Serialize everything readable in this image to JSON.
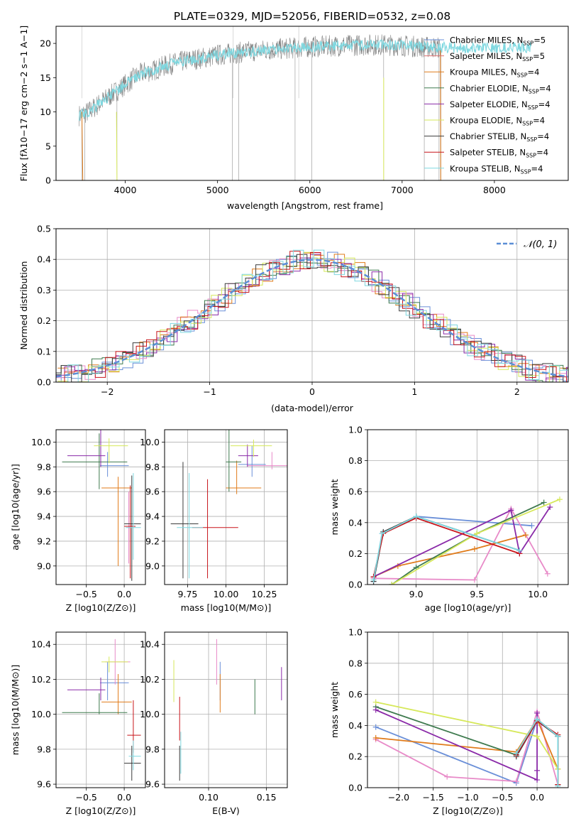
{
  "figure_title": "PLATE=0329, MJD=52056, FIBERID=0532, z=0.08",
  "colors": {
    "Chabrier MILES": "#6a8fd8",
    "Salpeter MILES": "#e07070",
    "Kroupa MILES": "#e07b1a",
    "Chabrier ELODIE": "#3e7a4e",
    "Salpeter ELODIE": "#8a2aa8",
    "Kroupa ELODIE": "#d6e85a",
    "Chabrier STELIB": "#3c3c3c",
    "Salpeter STELIB": "#c8141a",
    "Kroupa STELIB": "#7fd8e0",
    "Chabrier MILES b": "#6a8fd8",
    "pink": "#e88ac8",
    "gaussian": "#5b8ed6",
    "spectrum": "#808080"
  },
  "chart_data": [
    {
      "id": "spectrum",
      "type": "line",
      "xlabel": "wavelength [Angstrom, rest frame]",
      "ylabel": "Flux [f$_\\lambda$10$^{-17}$ erg cm$^{-2}$ s$^{-1}$ A$^{-1}$]",
      "ylabel_text": "Flux [fλ10−17 erg cm−2 s−1 A−1]",
      "xlim": [
        3250,
        8800
      ],
      "ylim": [
        0,
        22.5
      ],
      "xticks": [
        4000,
        5000,
        6000,
        7000,
        8000
      ],
      "yticks": [
        0,
        5,
        10,
        15,
        20
      ],
      "grid": false,
      "legend_position": "upper right",
      "legend": [
        {
          "name": "Chabrier MILES",
          "nssp": "5"
        },
        {
          "name": "Salpeter MILES",
          "nssp": "5"
        },
        {
          "name": "Kroupa MILES",
          "nssp": "4"
        },
        {
          "name": "Chabrier ELODIE",
          "nssp": "4"
        },
        {
          "name": "Salpeter ELODIE",
          "nssp": "4"
        },
        {
          "name": "Kroupa ELODIE",
          "nssp": "4"
        },
        {
          "name": "Chabrier STELIB",
          "nssp": "4"
        },
        {
          "name": "Salpeter STELIB",
          "nssp": "4"
        },
        {
          "name": "Kroupa STELIB",
          "nssp": "4"
        }
      ],
      "continuum": [
        [
          3500,
          9.5
        ],
        [
          3600,
          10.0
        ],
        [
          3700,
          11.0
        ],
        [
          3800,
          12.0
        ],
        [
          3900,
          13.0
        ],
        [
          4000,
          14.0
        ],
        [
          4100,
          15.0
        ],
        [
          4200,
          15.8
        ],
        [
          4300,
          16.0
        ],
        [
          4400,
          16.6
        ],
        [
          4500,
          17.0
        ],
        [
          4600,
          17.3
        ],
        [
          4700,
          17.6
        ],
        [
          4800,
          17.8
        ],
        [
          4900,
          18.0
        ],
        [
          5000,
          18.3
        ],
        [
          5200,
          18.6
        ],
        [
          5400,
          18.9
        ],
        [
          5600,
          19.1
        ],
        [
          5800,
          19.3
        ],
        [
          6000,
          19.5
        ],
        [
          6200,
          19.6
        ],
        [
          6400,
          19.7
        ],
        [
          6600,
          19.8
        ],
        [
          6800,
          19.8
        ],
        [
          7000,
          19.7
        ],
        [
          7200,
          19.5
        ],
        [
          7400,
          19.4
        ]
      ],
      "model_x_range": [
        3500,
        8400
      ],
      "data_x_range": [
        3500,
        7420
      ]
    },
    {
      "id": "residuals",
      "type": "histogram",
      "xlabel": "(data-model)/error",
      "ylabel": "Normed distribution",
      "xlim": [
        -2.5,
        2.5
      ],
      "ylim": [
        0,
        0.5
      ],
      "xticks": [
        -2,
        -1,
        0,
        1,
        2
      ],
      "yticks": [
        0.0,
        0.1,
        0.2,
        0.3,
        0.4,
        0.5
      ],
      "grid": true,
      "legend": [
        {
          "name": "$\\mathcal{N}(0,1)$",
          "label_text": "𝒩(0, 1)"
        }
      ],
      "legend_position": "upper right",
      "bin_width": 0.1
    },
    {
      "id": "age_vs_Z",
      "type": "errorbar",
      "xlabel_text": "Z [log10(Z/Z⊙)]",
      "ylabel_text": "age  [log10(age/yr)]",
      "xlim": [
        -0.9,
        0.28
      ],
      "ylim": [
        8.85,
        10.1
      ],
      "xticks": [
        -0.5,
        0.0
      ],
      "yticks": [
        9.0,
        9.2,
        9.4,
        9.6,
        9.8,
        10.0
      ],
      "grid": true,
      "points": [
        {
          "s": "Chabrier MILES",
          "x": -0.22,
          "y": 9.81,
          "xl": -0.32,
          "xh": 0.06,
          "yl": 9.72,
          "yh": 9.92
        },
        {
          "s": "Salpeter MILES",
          "x": 0.06,
          "y": 9.31,
          "xl": 0.04,
          "xh": 0.08,
          "yl": 9.02,
          "yh": 9.6
        },
        {
          "s": "Kroupa MILES",
          "x": -0.08,
          "y": 9.63,
          "xl": -0.3,
          "xh": 0.1,
          "yl": 9.0,
          "yh": 9.72
        },
        {
          "s": "Chabrier ELODIE",
          "x": -0.33,
          "y": 9.84,
          "xl": -0.82,
          "xh": 0.04,
          "yl": 9.62,
          "yh": 10.07
        },
        {
          "s": "Salpeter ELODIE",
          "x": -0.31,
          "y": 9.89,
          "xl": -0.75,
          "xh": -0.25,
          "yl": 9.8,
          "yh": 10.12
        },
        {
          "s": "Kroupa ELODIE",
          "x": -0.2,
          "y": 9.97,
          "xl": -0.4,
          "xh": 0.05,
          "yl": 9.83,
          "yh": 10.03
        },
        {
          "s": "Chabrier STELIB",
          "x": 0.1,
          "y": 9.34,
          "xl": 0.0,
          "xh": 0.22,
          "yl": 8.88,
          "yh": 9.73
        },
        {
          "s": "Salpeter STELIB",
          "x": 0.08,
          "y": 9.32,
          "xl": 0.0,
          "xh": 0.15,
          "yl": 8.9,
          "yh": 9.65
        },
        {
          "s": "Kroupa STELIB",
          "x": 0.12,
          "y": 9.31,
          "xl": 0.02,
          "xh": 0.22,
          "yl": 9.05,
          "yh": 9.75
        }
      ]
    },
    {
      "id": "age_vs_mass",
      "type": "errorbar",
      "xlabel_text": "mass [log10(M/M⊙)]",
      "ylabel_text": "",
      "xlim": [
        9.6,
        10.4
      ],
      "ylim": [
        8.85,
        10.1
      ],
      "xticks": [
        9.75,
        10.0,
        10.25
      ],
      "yticks": [
        9.0,
        9.2,
        9.4,
        9.6,
        9.8,
        10.0
      ],
      "grid": true,
      "points": [
        {
          "s": "Chabrier MILES",
          "x": 10.17,
          "y": 9.82,
          "xl": 10.08,
          "xh": 10.26,
          "yl": 9.72,
          "yh": 9.97
        },
        {
          "s": "Salpeter MILES",
          "x": 10.3,
          "y": 9.81,
          "xl": 10.14,
          "xh": 10.43,
          "yl": 9.78,
          "yh": 9.92
        },
        {
          "s": "Kroupa MILES",
          "x": 10.07,
          "y": 9.63,
          "xl": 10.0,
          "xh": 10.23,
          "yl": 9.58,
          "yh": 9.85
        },
        {
          "s": "Chabrier ELODIE",
          "x": 10.02,
          "y": 9.84,
          "xl": 10.0,
          "xh": 10.1,
          "yl": 9.6,
          "yh": 10.13
        },
        {
          "s": "Salpeter ELODIE",
          "x": 10.14,
          "y": 9.89,
          "xl": 10.08,
          "xh": 10.21,
          "yl": 9.8,
          "yh": 9.98
        },
        {
          "s": "Kroupa ELODIE",
          "x": 10.18,
          "y": 9.97,
          "xl": 10.03,
          "xh": 10.3,
          "yl": 9.88,
          "yh": 10.02
        },
        {
          "s": "Chabrier STELIB",
          "x": 9.72,
          "y": 9.34,
          "xl": 9.64,
          "xh": 9.82,
          "yl": 8.9,
          "yh": 9.84
        },
        {
          "s": "Salpeter STELIB",
          "x": 9.88,
          "y": 9.31,
          "xl": 9.78,
          "xh": 10.08,
          "yl": 8.9,
          "yh": 9.7
        },
        {
          "s": "Kroupa STELIB",
          "x": 9.76,
          "y": 9.31,
          "xl": 9.68,
          "xh": 9.85,
          "yl": 8.9,
          "yh": 9.75
        }
      ]
    },
    {
      "id": "massweight_vs_age",
      "type": "line",
      "xlabel_text": "age  [log10(age/yr)]",
      "ylabel": "mass weight",
      "xlim": [
        8.6,
        10.25
      ],
      "ylim": [
        0.0,
        1.0
      ],
      "xticks": [
        9.0,
        9.5,
        10.0
      ],
      "yticks": [
        0.0,
        0.2,
        0.4,
        0.6,
        0.8,
        1.0
      ],
      "grid": true,
      "series": [
        {
          "s": "Chabrier MILES",
          "points": [
            [
              8.65,
              0.02
            ],
            [
              8.72,
              0.33
            ],
            [
              9.0,
              0.44
            ],
            [
              9.95,
              0.38
            ]
          ]
        },
        {
          "s": "Salpeter MILES",
          "points": [
            [
              8.65,
              0.04
            ],
            [
              9.48,
              0.03
            ],
            [
              9.78,
              0.49
            ],
            [
              10.08,
              0.07
            ]
          ]
        },
        {
          "s": "Kroupa MILES",
          "points": [
            [
              8.65,
              0.05
            ],
            [
              8.85,
              0.12
            ],
            [
              9.48,
              0.23
            ],
            [
              9.9,
              0.32
            ]
          ]
        },
        {
          "s": "Chabrier ELODIE",
          "points": [
            [
              8.8,
              0.0
            ],
            [
              9.0,
              0.11
            ],
            [
              9.5,
              0.33
            ],
            [
              10.05,
              0.53
            ]
          ]
        },
        {
          "s": "Salpeter ELODIE",
          "points": [
            [
              8.65,
              0.05
            ],
            [
              9.78,
              0.48
            ],
            [
              9.85,
              0.2
            ],
            [
              10.1,
              0.5
            ]
          ]
        },
        {
          "s": "Kroupa ELODIE",
          "points": [
            [
              8.8,
              0.0
            ],
            [
              9.5,
              0.33
            ],
            [
              10.18,
              0.55
            ]
          ]
        },
        {
          "s": "Chabrier STELIB",
          "points": [
            [
              8.65,
              0.02
            ],
            [
              8.73,
              0.34
            ],
            [
              9.0,
              0.44
            ],
            [
              9.85,
              0.22
            ]
          ]
        },
        {
          "s": "Salpeter STELIB",
          "points": [
            [
              8.65,
              0.05
            ],
            [
              8.73,
              0.33
            ],
            [
              9.0,
              0.43
            ],
            [
              9.85,
              0.2
            ]
          ]
        },
        {
          "s": "Kroupa STELIB",
          "points": [
            [
              8.65,
              0.03
            ],
            [
              8.72,
              0.33
            ],
            [
              9.0,
              0.44
            ],
            [
              9.85,
              0.22
            ]
          ]
        }
      ]
    },
    {
      "id": "mass_vs_Z",
      "type": "errorbar",
      "xlabel_text": "Z [log10(Z/Z⊙)]",
      "ylabel_text": "mass [log10(M/M⊙)]",
      "xlim": [
        -0.9,
        0.28
      ],
      "ylim": [
        9.58,
        10.47
      ],
      "xticks": [
        -0.5,
        0.0
      ],
      "yticks": [
        9.6,
        9.8,
        10.0,
        10.2,
        10.4
      ],
      "grid": true,
      "points": [
        {
          "s": "Chabrier MILES",
          "x": -0.22,
          "y": 10.18,
          "xl": -0.32,
          "xh": 0.06,
          "yl": 10.08,
          "yh": 10.3
        },
        {
          "s": "Salpeter MILES",
          "x": -0.12,
          "y": 10.3,
          "xl": -0.25,
          "xh": 0.08,
          "yl": 10.17,
          "yh": 10.43
        },
        {
          "s": "Kroupa MILES",
          "x": -0.08,
          "y": 10.07,
          "xl": -0.3,
          "xh": 0.1,
          "yl": 10.0,
          "yh": 10.23
        },
        {
          "s": "Chabrier ELODIE",
          "x": -0.33,
          "y": 10.01,
          "xl": -0.82,
          "xh": 0.04,
          "yl": 10.0,
          "yh": 10.12
        },
        {
          "s": "Salpeter ELODIE",
          "x": -0.31,
          "y": 10.14,
          "xl": -0.75,
          "xh": -0.25,
          "yl": 10.08,
          "yh": 10.21
        },
        {
          "s": "Kroupa ELODIE",
          "x": -0.2,
          "y": 10.3,
          "xl": -0.3,
          "xh": 0.05,
          "yl": 10.24,
          "yh": 10.33
        },
        {
          "s": "Chabrier STELIB",
          "x": 0.1,
          "y": 9.72,
          "xl": 0.0,
          "xh": 0.22,
          "yl": 9.62,
          "yh": 9.82
        },
        {
          "s": "Salpeter STELIB",
          "x": 0.12,
          "y": 9.88,
          "xl": 0.04,
          "xh": 0.22,
          "yl": 9.78,
          "yh": 10.08
        },
        {
          "s": "Kroupa STELIB",
          "x": 0.12,
          "y": 9.76,
          "xl": 0.06,
          "xh": 0.22,
          "yl": 9.68,
          "yh": 9.85
        }
      ]
    },
    {
      "id": "mass_vs_EBV",
      "type": "errorbar",
      "xlabel": "E(B-V)",
      "xlim": [
        0.062,
        0.168
      ],
      "ylim": [
        9.58,
        10.47
      ],
      "xticks": [
        0.1,
        0.15
      ],
      "yticks": [
        9.6,
        9.8,
        10.0,
        10.2,
        10.4
      ],
      "grid": true,
      "points": [
        {
          "s": "Chabrier MILES",
          "x": 0.11,
          "y": 10.18,
          "yl": 10.08,
          "yh": 10.3
        },
        {
          "s": "Salpeter MILES",
          "x": 0.107,
          "y": 10.3,
          "yl": 10.17,
          "yh": 10.43
        },
        {
          "s": "Kroupa MILES",
          "x": 0.11,
          "y": 10.07,
          "yl": 10.01,
          "yh": 10.23
        },
        {
          "s": "Chabrier ELODIE",
          "x": 0.14,
          "y": 10.08,
          "yl": 10.0,
          "yh": 10.2
        },
        {
          "s": "Salpeter ELODIE",
          "x": 0.163,
          "y": 10.14,
          "yl": 10.08,
          "yh": 10.27
        },
        {
          "s": "Kroupa ELODIE",
          "x": 0.07,
          "y": 10.14,
          "yl": 10.07,
          "yh": 10.31
        },
        {
          "s": "Chabrier STELIB",
          "x": 0.075,
          "y": 9.72,
          "yl": 9.62,
          "yh": 9.82
        },
        {
          "s": "Salpeter STELIB",
          "x": 0.075,
          "y": 9.98,
          "yl": 9.85,
          "yh": 10.1
        },
        {
          "s": "Kroupa STELIB",
          "x": 0.076,
          "y": 9.76,
          "yl": 9.66,
          "yh": 9.9
        }
      ]
    },
    {
      "id": "massweight_vs_Z",
      "type": "line",
      "xlabel_text": "Z [log10(Z/Z⊙)]",
      "ylabel": "mass weight",
      "xlim": [
        -2.45,
        0.45
      ],
      "ylim": [
        0.0,
        1.0
      ],
      "xticks": [
        -2.0,
        -1.5,
        -1.0,
        -0.5,
        0.0
      ],
      "yticks": [
        0.0,
        0.2,
        0.4,
        0.6,
        0.8,
        1.0
      ],
      "grid": true,
      "series": [
        {
          "s": "Chabrier MILES",
          "points": [
            [
              -2.33,
              0.39
            ],
            [
              -0.3,
              0.03
            ],
            [
              0.0,
              0.44
            ],
            [
              0.3,
              0.33
            ]
          ]
        },
        {
          "s": "Salpeter MILES",
          "points": [
            [
              -2.33,
              0.31
            ],
            [
              -1.3,
              0.07
            ],
            [
              -0.3,
              0.04
            ],
            [
              0.0,
              0.49
            ],
            [
              0.3,
              0.02
            ]
          ]
        },
        {
          "s": "Kroupa MILES",
          "points": [
            [
              -2.33,
              0.32
            ],
            [
              -0.3,
              0.23
            ],
            [
              0.0,
              0.44
            ],
            [
              0.3,
              0.12
            ]
          ]
        },
        {
          "s": "Chabrier ELODIE",
          "points": [
            [
              -2.33,
              0.52
            ],
            [
              -0.3,
              0.21
            ],
            [
              0.0,
              0.44
            ],
            [
              0.3,
              0.33
            ]
          ]
        },
        {
          "s": "Salpeter ELODIE",
          "points": [
            [
              -2.33,
              0.5
            ],
            [
              0.0,
              0.05
            ],
            [
              0.0,
              0.11
            ],
            [
              0.0,
              0.48
            ]
          ]
        },
        {
          "s": "Kroupa ELODIE",
          "points": [
            [
              -2.33,
              0.55
            ],
            [
              0.0,
              0.33
            ],
            [
              0.3,
              0.12
            ]
          ]
        },
        {
          "s": "Chabrier STELIB",
          "points": [
            [
              -0.3,
              0.2
            ],
            [
              0.0,
              0.43
            ],
            [
              0.3,
              0.33
            ],
            [
              0.3,
              0.02
            ]
          ]
        },
        {
          "s": "Salpeter STELIB",
          "points": [
            [
              -0.3,
              0.21
            ],
            [
              0.0,
              0.43
            ],
            [
              0.3,
              0.34
            ],
            [
              0.3,
              0.02
            ]
          ]
        },
        {
          "s": "Kroupa STELIB",
          "points": [
            [
              -0.3,
              0.22
            ],
            [
              0.0,
              0.44
            ],
            [
              0.3,
              0.33
            ],
            [
              0.3,
              0.01
            ]
          ]
        }
      ]
    }
  ]
}
